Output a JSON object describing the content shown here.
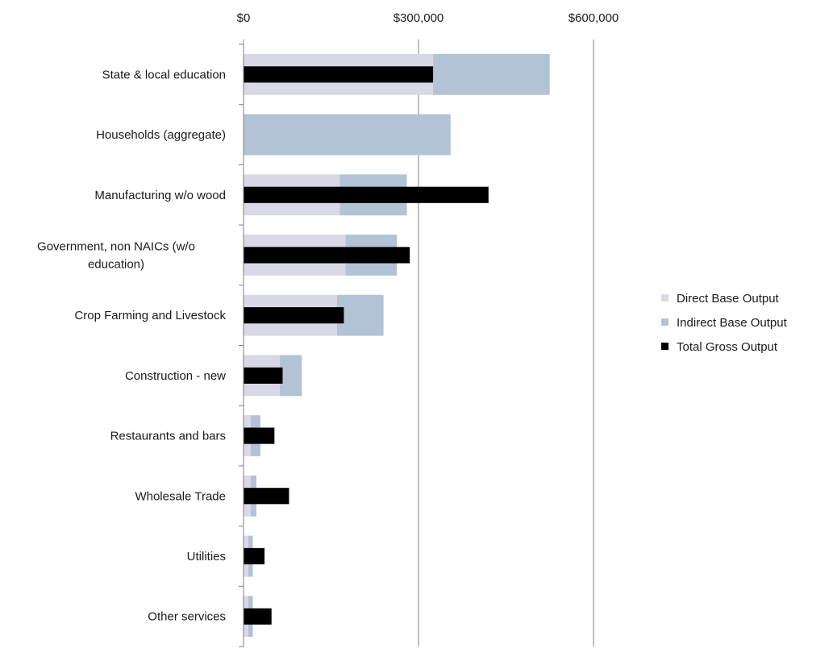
{
  "chart_data": {
    "type": "bar",
    "orientation": "horizontal",
    "categories": [
      "State & local education",
      "Households (aggregate)",
      "Manufacturing w/o wood",
      "Government, non NAICs (w/o education)",
      "Crop Farming and Livestock",
      "Construction - new",
      "Restaurants and bars",
      "Wholesale Trade",
      "Utilities",
      "Other services"
    ],
    "category_lines": [
      [
        "State & local education"
      ],
      [
        "Households (aggregate)"
      ],
      [
        "Manufacturing w/o wood"
      ],
      [
        "Government, non NAICs (w/o",
        "education)"
      ],
      [
        "Crop Farming and Livestock"
      ],
      [
        "Construction - new"
      ],
      [
        "Restaurants and bars"
      ],
      [
        "Wholesale Trade"
      ],
      [
        "Utilities"
      ],
      [
        "Other services"
      ]
    ],
    "series": [
      {
        "name": "Direct Base Output",
        "values": [
          325000,
          0,
          165000,
          175000,
          160000,
          62000,
          12000,
          12000,
          8000,
          8000
        ],
        "color": "#d9d8e6"
      },
      {
        "name": "Indirect Base Output",
        "values": [
          200000,
          355000,
          115000,
          88000,
          80000,
          38000,
          17000,
          10000,
          8000,
          8000
        ],
        "color": "#b3c3d6"
      },
      {
        "name": "Total Gross Output",
        "values": [
          325000,
          0,
          420000,
          285000,
          172000,
          67000,
          53000,
          78000,
          36000,
          48000
        ],
        "color": "#000000"
      }
    ],
    "x_tick_labels": [
      "$0",
      "$300,000",
      "$600,000"
    ],
    "x_ticks": [
      0,
      300000,
      600000
    ],
    "xlim": [
      0,
      600000
    ],
    "title": "",
    "xlabel": "",
    "ylabel": "",
    "grid": true,
    "legend_position": "right"
  }
}
